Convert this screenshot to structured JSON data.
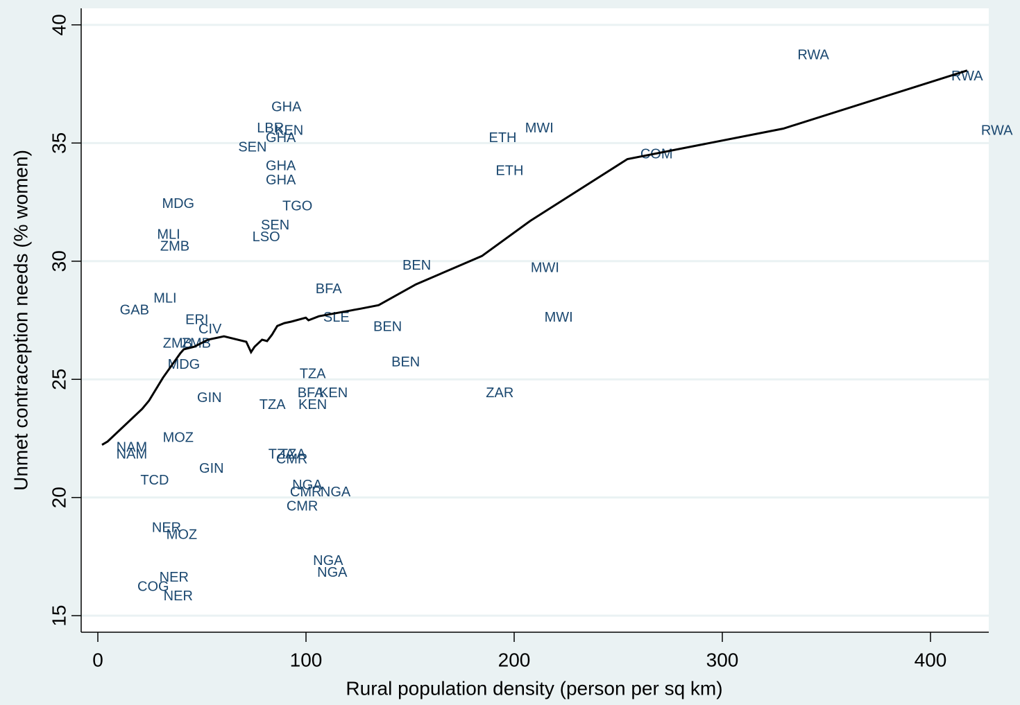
{
  "chart_data": {
    "type": "scatter",
    "x_label": "Rural population density (person per sq km)",
    "y_label": "Unmet contraception needs (% women)",
    "xlim": [
      -8,
      428
    ],
    "ylim": [
      14.3,
      40.7
    ],
    "xticks": [
      0,
      100,
      200,
      300,
      400
    ],
    "yticks": [
      15,
      20,
      25,
      30,
      35,
      40
    ],
    "grid": true,
    "series": [
      {
        "type": "scatter",
        "color": "#1a476f",
        "labels": [
          "RWA",
          "RWA",
          "RWA",
          "COM",
          "MWI",
          "ETH",
          "ETH",
          "MWI",
          "MWI",
          "ZAR",
          "BEN",
          "BEN",
          "BEN",
          "GHA",
          "LBR",
          "KEN",
          "GHA",
          "SEN",
          "GHA",
          "GHA",
          "TGO",
          "SEN",
          "LSO",
          "MDG",
          "MLI",
          "ZMB",
          "MLI",
          "GAB",
          "BFA",
          "SLE",
          "ERI",
          "CIV",
          "ZMB",
          "ZMB",
          "MDG",
          "TZA",
          "BFA",
          "KEN",
          "GIN",
          "TZA",
          "KEN",
          "MOZ",
          "NAM",
          "NAM",
          "TZA",
          "TZA",
          "CMR",
          "GIN",
          "TCD",
          "NGA",
          "CMR",
          "NGA",
          "CMR",
          "NER",
          "MOZ",
          "NGA",
          "NGA",
          "NER",
          "COG",
          "NER"
        ],
        "x": [
          343.7,
          417.6,
          431.9,
          268.4,
          212.1,
          194.5,
          197.8,
          214.8,
          221.4,
          193.1,
          153.2,
          139.2,
          147.9,
          90.6,
          82.9,
          91.9,
          87.9,
          74.3,
          87.9,
          87.9,
          95.9,
          85.2,
          80.9,
          38.6,
          34.0,
          37.0,
          32.3,
          17.6,
          110.9,
          114.6,
          47.6,
          53.9,
          38.3,
          47.3,
          41.3,
          103.2,
          102.2,
          113.2,
          53.6,
          83.9,
          103.2,
          38.6,
          16.3,
          16.3,
          88.2,
          93.6,
          93.2,
          54.6,
          27.3,
          100.6,
          99.9,
          114.2,
          98.2,
          33.0,
          40.3,
          110.6,
          112.6,
          36.6,
          26.6,
          38.6
        ],
        "y": [
          38.7,
          37.8,
          35.5,
          34.5,
          35.6,
          35.2,
          33.8,
          29.7,
          27.6,
          24.4,
          29.8,
          27.2,
          25.7,
          36.5,
          35.6,
          35.5,
          35.2,
          34.8,
          34.0,
          33.4,
          32.3,
          31.5,
          31.0,
          32.4,
          31.1,
          30.6,
          28.4,
          27.9,
          28.8,
          27.6,
          27.5,
          27.1,
          26.5,
          26.5,
          25.6,
          25.2,
          24.4,
          24.4,
          24.2,
          23.9,
          23.9,
          22.5,
          22.1,
          21.8,
          21.8,
          21.8,
          21.6,
          21.2,
          20.7,
          20.5,
          20.2,
          20.2,
          19.6,
          18.7,
          18.4,
          17.3,
          16.8,
          16.6,
          16.2,
          15.8
        ]
      },
      {
        "type": "line",
        "color": "#000000",
        "x": [
          2.0,
          4.7,
          21.3,
          24.6,
          31.3,
          39.6,
          41.3,
          46.3,
          52.9,
          60.6,
          71.3,
          73.6,
          75.3,
          78.9,
          81.3,
          83.6,
          86.2,
          89.6,
          92.9,
          99.9,
          101.2,
          106.2,
          126.2,
          134.9,
          152.8,
          184.5,
          207.8,
          254.4,
          329.3,
          417.6
        ],
        "y": [
          22.23,
          22.37,
          23.75,
          24.1,
          25.07,
          26.1,
          26.27,
          26.38,
          26.68,
          26.82,
          26.59,
          26.15,
          26.38,
          26.68,
          26.62,
          26.88,
          27.26,
          27.38,
          27.44,
          27.61,
          27.5,
          27.67,
          27.99,
          28.14,
          29.02,
          30.22,
          31.71,
          34.32,
          35.61,
          38.07
        ]
      }
    ]
  }
}
